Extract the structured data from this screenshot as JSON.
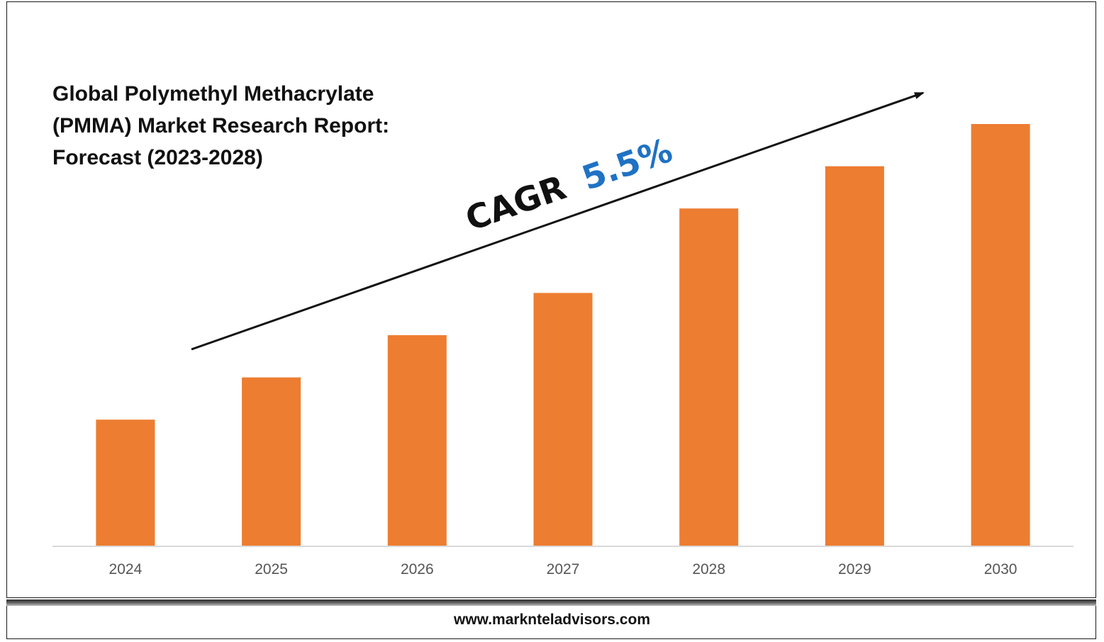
{
  "title_lines": [
    "Global Polymethyl Methacrylate",
    "(PMMA) Market Research Report:",
    "Forecast (2023-2028)"
  ],
  "cagr": {
    "label": "CAGR",
    "value": "5.5%",
    "label_color": "#111111",
    "value_color": "#1f72c4"
  },
  "footer_url": "www.marknteladvisors.com",
  "colors": {
    "bar": "#ed7d31",
    "axis": "#d9d9d9",
    "arrow": "#111111"
  },
  "chart_data": {
    "type": "bar",
    "categories": [
      "2024",
      "2025",
      "2026",
      "2027",
      "2028",
      "2029",
      "2030"
    ],
    "values": [
      30,
      40,
      50,
      60,
      80,
      90,
      100
    ],
    "title": "Global Polymethyl Methacrylate (PMMA) Market Research Report: Forecast (2023-2028)",
    "xlabel": "",
    "ylabel": "",
    "ylim": [
      0,
      100
    ],
    "grid": false,
    "legend": "none",
    "annotations": [
      "CAGR 5.5%"
    ]
  }
}
